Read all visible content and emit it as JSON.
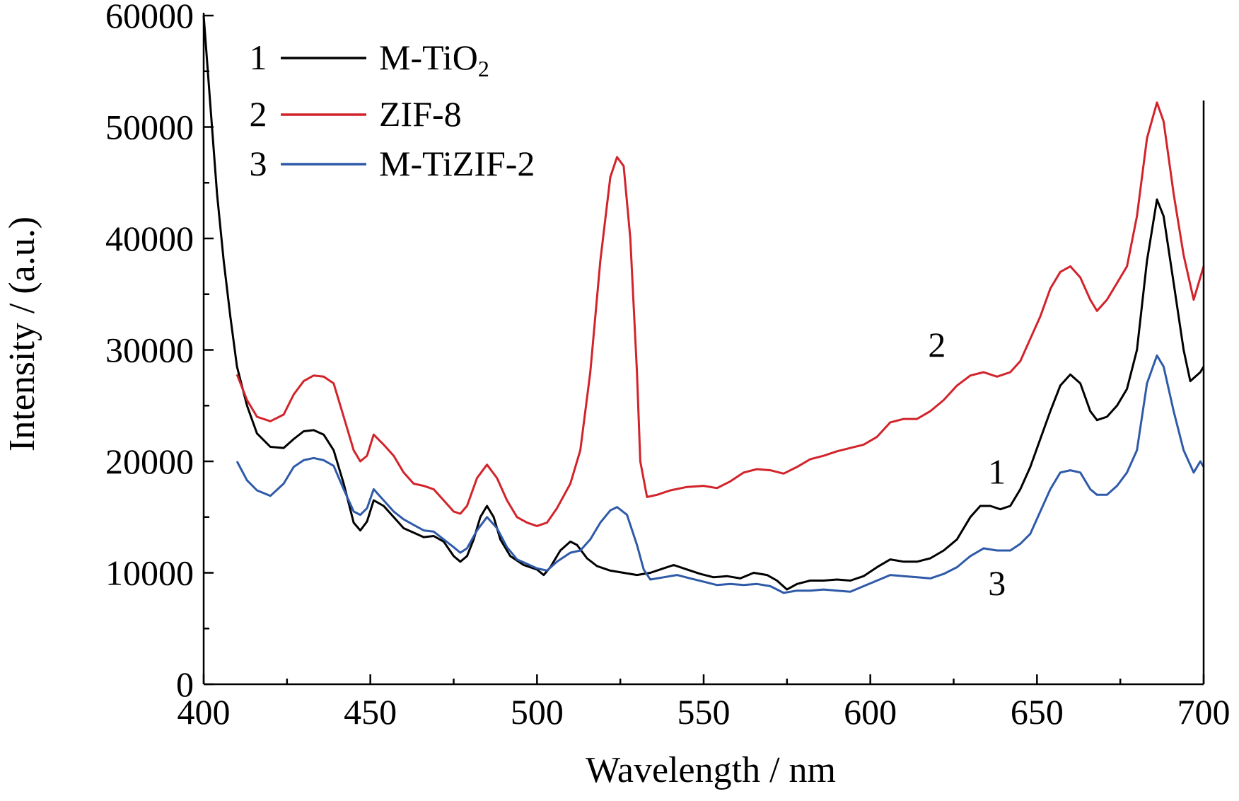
{
  "chart_data": {
    "type": "line",
    "xlabel": "Wavelength / nm",
    "ylabel": "Intensity / (a.u.)",
    "xlim": [
      400,
      700
    ],
    "ylim": [
      0,
      60000
    ],
    "x_ticks": [
      "400",
      "450",
      "500",
      "550",
      "600",
      "650",
      "700"
    ],
    "y_ticks": [
      "0",
      "10000",
      "20000",
      "30000",
      "40000",
      "50000",
      "60000"
    ],
    "x_tick_values": [
      400,
      450,
      500,
      550,
      600,
      650,
      700
    ],
    "y_tick_values": [
      0,
      10000,
      20000,
      30000,
      40000,
      50000,
      60000
    ],
    "legend_position": "top-left",
    "grid": false,
    "series": [
      {
        "name": "M-TiO2",
        "name_main": "M-TiO",
        "name_sub": "2",
        "number": "1",
        "color": "#000000",
        "points": [
          [
            400,
            60000
          ],
          [
            402,
            52000
          ],
          [
            404,
            44000
          ],
          [
            406,
            38000
          ],
          [
            408,
            33000
          ],
          [
            410,
            28500
          ],
          [
            413,
            25000
          ],
          [
            416,
            22500
          ],
          [
            420,
            21300
          ],
          [
            424,
            21200
          ],
          [
            427,
            22000
          ],
          [
            430,
            22700
          ],
          [
            433,
            22800
          ],
          [
            436,
            22400
          ],
          [
            439,
            21000
          ],
          [
            442,
            18000
          ],
          [
            445,
            14500
          ],
          [
            447,
            13800
          ],
          [
            449,
            14600
          ],
          [
            451,
            16500
          ],
          [
            454,
            16000
          ],
          [
            457,
            15000
          ],
          [
            460,
            14000
          ],
          [
            463,
            13600
          ],
          [
            466,
            13200
          ],
          [
            469,
            13300
          ],
          [
            472,
            12800
          ],
          [
            475,
            11500
          ],
          [
            477,
            11000
          ],
          [
            479,
            11500
          ],
          [
            481,
            13000
          ],
          [
            483,
            15000
          ],
          [
            485,
            16000
          ],
          [
            487,
            15000
          ],
          [
            489,
            13000
          ],
          [
            492,
            11500
          ],
          [
            496,
            10700
          ],
          [
            500,
            10300
          ],
          [
            502,
            9800
          ],
          [
            504,
            10500
          ],
          [
            507,
            12000
          ],
          [
            510,
            12800
          ],
          [
            512,
            12500
          ],
          [
            515,
            11300
          ],
          [
            518,
            10600
          ],
          [
            522,
            10200
          ],
          [
            526,
            10000
          ],
          [
            530,
            9800
          ],
          [
            534,
            10000
          ],
          [
            538,
            10400
          ],
          [
            541,
            10700
          ],
          [
            545,
            10300
          ],
          [
            549,
            9900
          ],
          [
            553,
            9600
          ],
          [
            557,
            9700
          ],
          [
            561,
            9500
          ],
          [
            565,
            10000
          ],
          [
            569,
            9800
          ],
          [
            572,
            9300
          ],
          [
            575,
            8500
          ],
          [
            578,
            9000
          ],
          [
            582,
            9300
          ],
          [
            586,
            9300
          ],
          [
            590,
            9400
          ],
          [
            594,
            9300
          ],
          [
            598,
            9700
          ],
          [
            602,
            10500
          ],
          [
            606,
            11200
          ],
          [
            610,
            11000
          ],
          [
            614,
            11000
          ],
          [
            618,
            11300
          ],
          [
            622,
            12000
          ],
          [
            626,
            13000
          ],
          [
            630,
            15000
          ],
          [
            633,
            16000
          ],
          [
            636,
            16000
          ],
          [
            639,
            15700
          ],
          [
            642,
            16000
          ],
          [
            645,
            17500
          ],
          [
            648,
            19500
          ],
          [
            651,
            22000
          ],
          [
            654,
            24500
          ],
          [
            657,
            26800
          ],
          [
            660,
            27800
          ],
          [
            663,
            27000
          ],
          [
            666,
            24500
          ],
          [
            668,
            23700
          ],
          [
            671,
            24000
          ],
          [
            674,
            25000
          ],
          [
            677,
            26500
          ],
          [
            680,
            30000
          ],
          [
            683,
            38000
          ],
          [
            686,
            43500
          ],
          [
            688,
            42000
          ],
          [
            691,
            36000
          ],
          [
            694,
            30000
          ],
          [
            696,
            27200
          ],
          [
            699,
            28000
          ],
          [
            700,
            28500
          ]
        ]
      },
      {
        "name": "ZIF-8",
        "name_main": "ZIF-8",
        "name_sub": "",
        "number": "2",
        "color": "#d2232a",
        "points": [
          [
            410,
            27800
          ],
          [
            413,
            25500
          ],
          [
            416,
            24000
          ],
          [
            420,
            23600
          ],
          [
            424,
            24200
          ],
          [
            427,
            26000
          ],
          [
            430,
            27200
          ],
          [
            433,
            27700
          ],
          [
            436,
            27600
          ],
          [
            439,
            27000
          ],
          [
            442,
            24000
          ],
          [
            445,
            21000
          ],
          [
            447,
            20000
          ],
          [
            449,
            20500
          ],
          [
            451,
            22400
          ],
          [
            454,
            21500
          ],
          [
            457,
            20500
          ],
          [
            460,
            19000
          ],
          [
            463,
            18000
          ],
          [
            466,
            17800
          ],
          [
            469,
            17500
          ],
          [
            472,
            16500
          ],
          [
            475,
            15500
          ],
          [
            477,
            15300
          ],
          [
            479,
            16000
          ],
          [
            482,
            18500
          ],
          [
            485,
            19700
          ],
          [
            488,
            18500
          ],
          [
            491,
            16500
          ],
          [
            494,
            15000
          ],
          [
            497,
            14500
          ],
          [
            500,
            14200
          ],
          [
            503,
            14500
          ],
          [
            506,
            15800
          ],
          [
            510,
            18000
          ],
          [
            513,
            21000
          ],
          [
            516,
            28000
          ],
          [
            519,
            38000
          ],
          [
            522,
            45500
          ],
          [
            524,
            47300
          ],
          [
            526,
            46500
          ],
          [
            528,
            40000
          ],
          [
            530,
            28000
          ],
          [
            531,
            20000
          ],
          [
            533,
            16800
          ],
          [
            536,
            17000
          ],
          [
            540,
            17400
          ],
          [
            545,
            17700
          ],
          [
            550,
            17800
          ],
          [
            554,
            17600
          ],
          [
            558,
            18200
          ],
          [
            562,
            19000
          ],
          [
            566,
            19300
          ],
          [
            570,
            19200
          ],
          [
            574,
            18900
          ],
          [
            578,
            19500
          ],
          [
            582,
            20200
          ],
          [
            586,
            20500
          ],
          [
            590,
            20900
          ],
          [
            594,
            21200
          ],
          [
            598,
            21500
          ],
          [
            602,
            22200
          ],
          [
            606,
            23500
          ],
          [
            610,
            23800
          ],
          [
            614,
            23800
          ],
          [
            618,
            24500
          ],
          [
            622,
            25500
          ],
          [
            626,
            26800
          ],
          [
            630,
            27700
          ],
          [
            634,
            28000
          ],
          [
            638,
            27600
          ],
          [
            642,
            28000
          ],
          [
            645,
            29000
          ],
          [
            648,
            31000
          ],
          [
            651,
            33000
          ],
          [
            654,
            35500
          ],
          [
            657,
            37000
          ],
          [
            660,
            37500
          ],
          [
            663,
            36500
          ],
          [
            666,
            34500
          ],
          [
            668,
            33500
          ],
          [
            671,
            34500
          ],
          [
            674,
            36000
          ],
          [
            677,
            37500
          ],
          [
            680,
            42000
          ],
          [
            683,
            49000
          ],
          [
            686,
            52200
          ],
          [
            688,
            50500
          ],
          [
            691,
            44000
          ],
          [
            694,
            38500
          ],
          [
            697,
            34500
          ],
          [
            699,
            36500
          ],
          [
            700,
            37500
          ]
        ]
      },
      {
        "name": "M-TiZIF-2",
        "name_main": "M-TiZIF-2",
        "name_sub": "",
        "number": "3",
        "color": "#2e5aa8",
        "points": [
          [
            410,
            20000
          ],
          [
            413,
            18300
          ],
          [
            416,
            17400
          ],
          [
            420,
            16900
          ],
          [
            424,
            18000
          ],
          [
            427,
            19500
          ],
          [
            430,
            20100
          ],
          [
            433,
            20300
          ],
          [
            436,
            20100
          ],
          [
            439,
            19600
          ],
          [
            442,
            17500
          ],
          [
            445,
            15500
          ],
          [
            447,
            15200
          ],
          [
            449,
            15800
          ],
          [
            451,
            17500
          ],
          [
            454,
            16500
          ],
          [
            457,
            15500
          ],
          [
            460,
            14800
          ],
          [
            463,
            14300
          ],
          [
            466,
            13800
          ],
          [
            469,
            13700
          ],
          [
            472,
            13000
          ],
          [
            475,
            12300
          ],
          [
            477,
            11800
          ],
          [
            479,
            12200
          ],
          [
            482,
            13800
          ],
          [
            485,
            15000
          ],
          [
            488,
            14000
          ],
          [
            491,
            12300
          ],
          [
            494,
            11200
          ],
          [
            497,
            10800
          ],
          [
            500,
            10400
          ],
          [
            503,
            10200
          ],
          [
            506,
            11000
          ],
          [
            510,
            11800
          ],
          [
            513,
            12000
          ],
          [
            516,
            13000
          ],
          [
            519,
            14500
          ],
          [
            522,
            15600
          ],
          [
            524,
            15900
          ],
          [
            527,
            15200
          ],
          [
            530,
            12500
          ],
          [
            532,
            10300
          ],
          [
            534,
            9400
          ],
          [
            538,
            9600
          ],
          [
            542,
            9800
          ],
          [
            546,
            9500
          ],
          [
            550,
            9200
          ],
          [
            554,
            8900
          ],
          [
            558,
            9000
          ],
          [
            562,
            8900
          ],
          [
            566,
            9000
          ],
          [
            570,
            8800
          ],
          [
            574,
            8200
          ],
          [
            578,
            8400
          ],
          [
            582,
            8400
          ],
          [
            586,
            8500
          ],
          [
            590,
            8400
          ],
          [
            594,
            8300
          ],
          [
            598,
            8800
          ],
          [
            602,
            9300
          ],
          [
            606,
            9800
          ],
          [
            610,
            9700
          ],
          [
            614,
            9600
          ],
          [
            618,
            9500
          ],
          [
            622,
            9900
          ],
          [
            626,
            10500
          ],
          [
            630,
            11500
          ],
          [
            634,
            12200
          ],
          [
            638,
            12000
          ],
          [
            642,
            12000
          ],
          [
            645,
            12600
          ],
          [
            648,
            13500
          ],
          [
            651,
            15500
          ],
          [
            654,
            17500
          ],
          [
            657,
            19000
          ],
          [
            660,
            19200
          ],
          [
            663,
            19000
          ],
          [
            666,
            17500
          ],
          [
            668,
            17000
          ],
          [
            671,
            17000
          ],
          [
            674,
            17800
          ],
          [
            677,
            19000
          ],
          [
            680,
            21000
          ],
          [
            683,
            27000
          ],
          [
            686,
            29500
          ],
          [
            688,
            28500
          ],
          [
            691,
            24500
          ],
          [
            694,
            21000
          ],
          [
            697,
            19000
          ],
          [
            699,
            20000
          ],
          [
            700,
            19500
          ]
        ]
      }
    ],
    "curve_labels": [
      {
        "text": "2",
        "x": 620,
        "y": 29400
      },
      {
        "text": "1",
        "x": 638,
        "y": 18000
      },
      {
        "text": "3",
        "x": 638,
        "y": 8000
      }
    ]
  }
}
